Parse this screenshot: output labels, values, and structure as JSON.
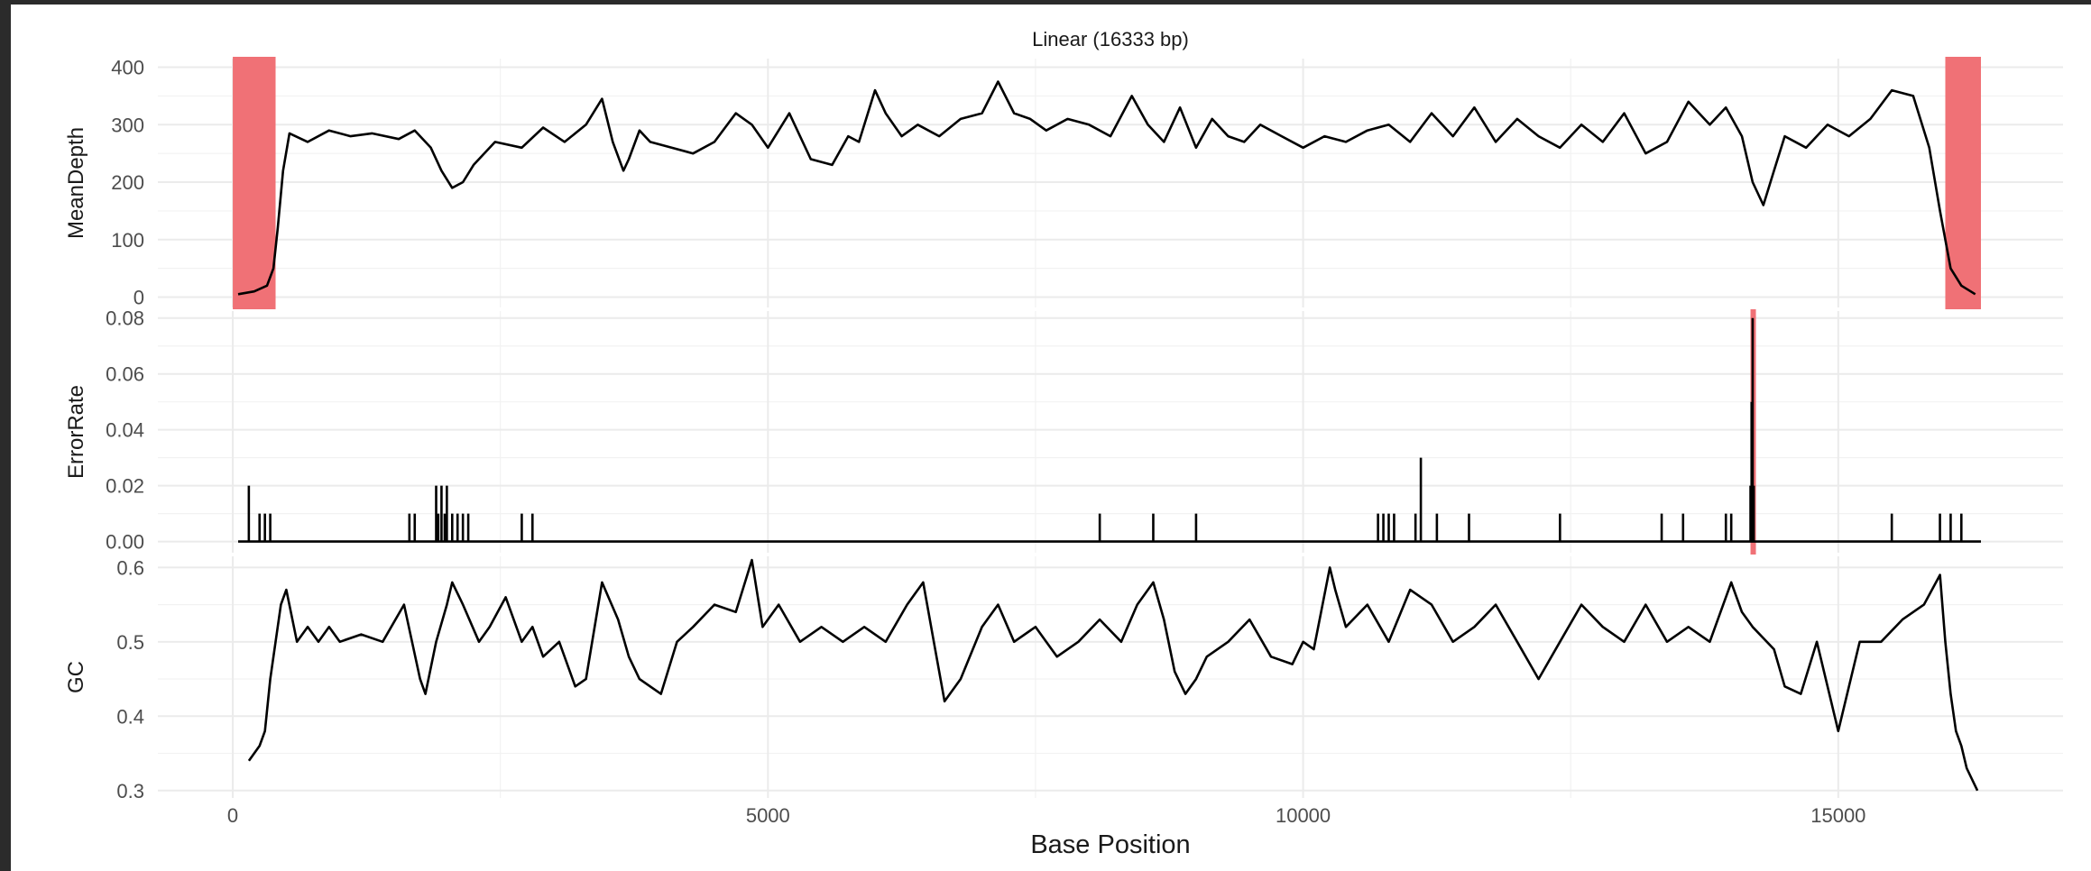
{
  "colors": {
    "series": "#000000",
    "highlight": "#f07176",
    "grid": "#ebebeb"
  },
  "chart_data": {
    "type": "line",
    "title": "Linear (16333 bp)",
    "xlabel": "Base Position",
    "xlim": [
      -700,
      17100
    ],
    "x_ticks": [
      0,
      5000,
      10000,
      15000
    ],
    "x_tick_labels": [
      "0",
      "5000",
      "10000",
      "15000"
    ],
    "panels": [
      {
        "ylabel": "MeanDepth",
        "ylim": [
          -18,
          415
        ],
        "y_ticks": [
          0,
          100,
          200,
          300,
          400
        ],
        "y_tick_labels": [
          "0",
          "100",
          "200",
          "300",
          "400"
        ],
        "highlights": [
          [
            0,
            400
          ],
          [
            16000,
            16333
          ]
        ],
        "series": [
          {
            "x": [
              50,
              200,
              320,
              380,
              420,
              470,
              530,
              700,
              900,
              1100,
              1300,
              1550,
              1700,
              1850,
              1950,
              2050,
              2150,
              2250,
              2450,
              2700,
              2900,
              3100,
              3300,
              3450,
              3550,
              3650,
              3700,
              3800,
              3900,
              4100,
              4300,
              4500,
              4700,
              4850,
              5000,
              5200,
              5400,
              5600,
              5750,
              5850,
              6000,
              6100,
              6250,
              6400,
              6600,
              6800,
              7000,
              7150,
              7300,
              7450,
              7600,
              7800,
              8000,
              8200,
              8400,
              8550,
              8700,
              8850,
              9000,
              9150,
              9300,
              9450,
              9600,
              9800,
              10000,
              10200,
              10400,
              10600,
              10800,
              11000,
              11200,
              11400,
              11600,
              11800,
              12000,
              12200,
              12400,
              12600,
              12800,
              13000,
              13200,
              13400,
              13600,
              13800,
              13950,
              14100,
              14200,
              14300,
              14400,
              14500,
              14700,
              14900,
              15100,
              15300,
              15500,
              15700,
              15850,
              15950,
              16050,
              16150,
              16280
            ],
            "values": [
              5,
              10,
              20,
              50,
              120,
              220,
              285,
              270,
              290,
              280,
              285,
              275,
              290,
              260,
              220,
              190,
              200,
              230,
              270,
              260,
              295,
              270,
              300,
              345,
              270,
              220,
              240,
              290,
              270,
              260,
              250,
              270,
              320,
              300,
              260,
              320,
              240,
              230,
              280,
              270,
              360,
              320,
              280,
              300,
              280,
              310,
              320,
              375,
              320,
              310,
              290,
              310,
              300,
              280,
              350,
              300,
              270,
              330,
              260,
              310,
              280,
              270,
              300,
              280,
              260,
              280,
              270,
              290,
              300,
              270,
              320,
              280,
              330,
              270,
              310,
              280,
              260,
              300,
              270,
              320,
              250,
              270,
              340,
              300,
              330,
              280,
              200,
              160,
              220,
              280,
              260,
              300,
              280,
              310,
              360,
              350,
              260,
              150,
              50,
              20,
              5
            ]
          }
        ]
      },
      {
        "ylabel": "ErrorRate",
        "ylim": [
          -0.004,
          0.0825
        ],
        "y_ticks": [
          0,
          0.02,
          0.04,
          0.06,
          0.08
        ],
        "y_tick_labels": [
          "0.00",
          "0.02",
          "0.04",
          "0.06",
          "0.08"
        ],
        "highlights": [
          [
            14180,
            14230
          ]
        ],
        "baseline": [
          50,
          16333
        ],
        "spikes": {
          "x": [
            150,
            250,
            300,
            350,
            1650,
            1700,
            1900,
            1920,
            1950,
            1980,
            2000,
            2050,
            2100,
            2150,
            2200,
            2700,
            2800,
            8100,
            8600,
            9000,
            10700,
            10750,
            10800,
            10850,
            11050,
            11100,
            11250,
            11550,
            12400,
            13350,
            13550,
            13950,
            14000,
            14180,
            14190,
            14200,
            14210,
            15500,
            15950,
            16050,
            16150
          ],
          "values": [
            0.02,
            0.01,
            0.01,
            0.01,
            0.01,
            0.01,
            0.02,
            0.01,
            0.02,
            0.01,
            0.02,
            0.01,
            0.01,
            0.01,
            0.01,
            0.01,
            0.01,
            0.01,
            0.01,
            0.01,
            0.01,
            0.01,
            0.01,
            0.01,
            0.01,
            0.03,
            0.01,
            0.01,
            0.01,
            0.01,
            0.01,
            0.01,
            0.01,
            0.02,
            0.05,
            0.08,
            0.02,
            0.01,
            0.01,
            0.01,
            0.01
          ]
        }
      },
      {
        "ylabel": "GC",
        "ylim": [
          0.29,
          0.615
        ],
        "y_ticks": [
          0.3,
          0.4,
          0.5,
          0.6
        ],
        "y_tick_labels": [
          "0.3",
          "0.4",
          "0.5",
          "0.6"
        ],
        "highlights": [],
        "series": [
          {
            "x": [
              150,
              200,
              250,
              300,
              350,
              400,
              450,
              500,
              600,
              700,
              800,
              900,
              1000,
              1200,
              1400,
              1600,
              1750,
              1800,
              1900,
              2000,
              2050,
              2150,
              2300,
              2400,
              2550,
              2700,
              2800,
              2900,
              3050,
              3200,
              3300,
              3450,
              3600,
              3700,
              3800,
              4000,
              4150,
              4300,
              4500,
              4700,
              4850,
              4950,
              5100,
              5300,
              5500,
              5700,
              5900,
              6100,
              6300,
              6450,
              6550,
              6650,
              6800,
              7000,
              7150,
              7300,
              7500,
              7700,
              7900,
              8100,
              8300,
              8450,
              8600,
              8700,
              8800,
              8900,
              9000,
              9100,
              9300,
              9500,
              9700,
              9900,
              10000,
              10100,
              10250,
              10300,
              10400,
              10600,
              10800,
              11000,
              11200,
              11400,
              11600,
              11800,
              12000,
              12200,
              12400,
              12600,
              12800,
              13000,
              13200,
              13400,
              13600,
              13800,
              14000,
              14100,
              14200,
              14400,
              14500,
              14650,
              14800,
              15000,
              15200,
              15400,
              15600,
              15800,
              15950,
              16000,
              16050,
              16100,
              16150,
              16200,
              16300
            ],
            "values": [
              0.34,
              0.35,
              0.36,
              0.38,
              0.45,
              0.5,
              0.55,
              0.57,
              0.5,
              0.52,
              0.5,
              0.52,
              0.5,
              0.51,
              0.5,
              0.55,
              0.45,
              0.43,
              0.5,
              0.55,
              0.58,
              0.55,
              0.5,
              0.52,
              0.56,
              0.5,
              0.52,
              0.48,
              0.5,
              0.44,
              0.45,
              0.58,
              0.53,
              0.48,
              0.45,
              0.43,
              0.5,
              0.52,
              0.55,
              0.54,
              0.61,
              0.52,
              0.55,
              0.5,
              0.52,
              0.5,
              0.52,
              0.5,
              0.55,
              0.58,
              0.5,
              0.42,
              0.45,
              0.52,
              0.55,
              0.5,
              0.52,
              0.48,
              0.5,
              0.53,
              0.5,
              0.55,
              0.58,
              0.53,
              0.46,
              0.43,
              0.45,
              0.48,
              0.5,
              0.53,
              0.48,
              0.47,
              0.5,
              0.49,
              0.6,
              0.57,
              0.52,
              0.55,
              0.5,
              0.57,
              0.55,
              0.5,
              0.52,
              0.55,
              0.5,
              0.45,
              0.5,
              0.55,
              0.52,
              0.5,
              0.55,
              0.5,
              0.52,
              0.5,
              0.58,
              0.54,
              0.52,
              0.49,
              0.44,
              0.43,
              0.5,
              0.38,
              0.5,
              0.5,
              0.53,
              0.55,
              0.59,
              0.5,
              0.43,
              0.38,
              0.36,
              0.33,
              0.3
            ]
          }
        ]
      }
    ]
  }
}
